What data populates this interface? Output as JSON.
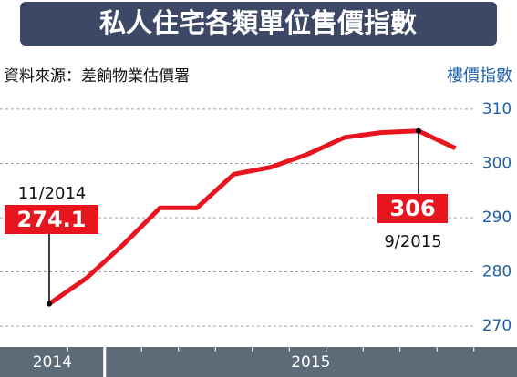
{
  "chart_data": {
    "type": "line",
    "title": "私人住宅各類單位售價指數",
    "source": "資料來源：差餉物業估價署",
    "y_label": "樓價指數",
    "categories": [
      "2014",
      "2014",
      "2015",
      "2015",
      "2015",
      "2015",
      "2015",
      "2015",
      "2015",
      "2015",
      "2015",
      "2015"
    ],
    "series": [
      {
        "color": "#e8141e",
        "values": [
          274.1,
          278.8,
          285.0,
          291.8,
          291.8,
          298.0,
          299.3,
          301.7,
          304.8,
          305.7,
          306,
          302.8
        ],
        "point_labels": [
          "11/2014",
          null,
          null,
          null,
          null,
          null,
          null,
          null,
          null,
          null,
          "9/2015",
          null
        ]
      }
    ],
    "ylim": [
      268.5,
      312
    ],
    "yticks": [
      270,
      280,
      290,
      300,
      310
    ],
    "grid": true
  }
}
